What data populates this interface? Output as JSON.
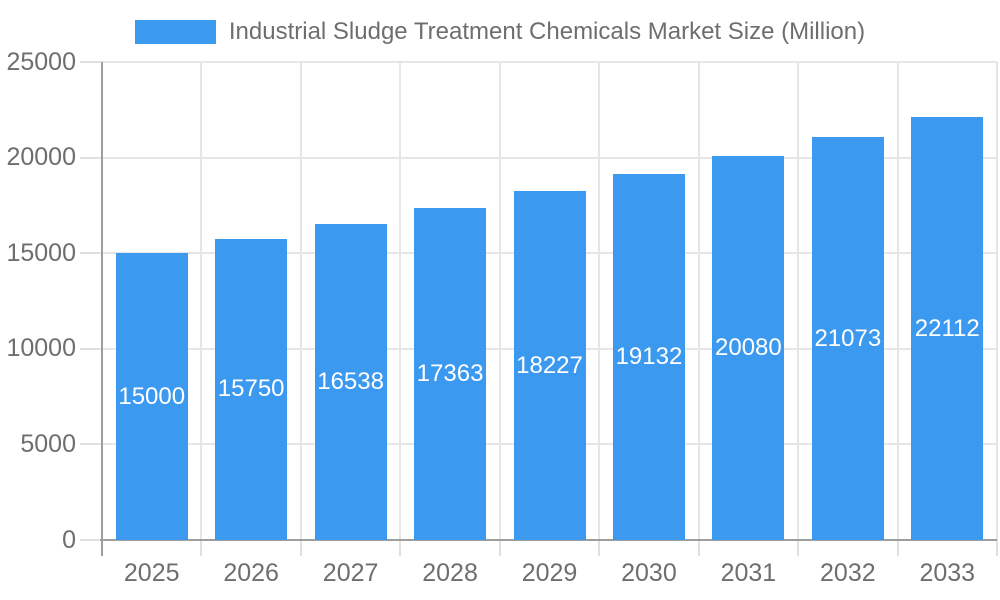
{
  "legend": {
    "label": "Industrial Sludge Treatment Chemicals Market Size (Million)"
  },
  "chart_data": {
    "type": "bar",
    "title": "Industrial Sludge Treatment Chemicals Market Size (Million)",
    "categories": [
      "2025",
      "2026",
      "2027",
      "2028",
      "2029",
      "2030",
      "2031",
      "2032",
      "2033"
    ],
    "values": [
      15000,
      15750,
      16538,
      17363,
      18227,
      19132,
      20080,
      21073,
      22112
    ],
    "xlabel": "",
    "ylabel": "",
    "ylim": [
      0,
      25000
    ],
    "yticks": [
      0,
      5000,
      10000,
      15000,
      20000,
      25000
    ],
    "grid": true,
    "legend_position": "top",
    "bar_color": "#3C99F0",
    "value_label_color": "#FFFFFF",
    "axis_label_color": "#6E6E6E",
    "axis_line_color": "#9E9E9E",
    "grid_color": "#E6E6E6",
    "tick_color": "#E0E0E0"
  }
}
